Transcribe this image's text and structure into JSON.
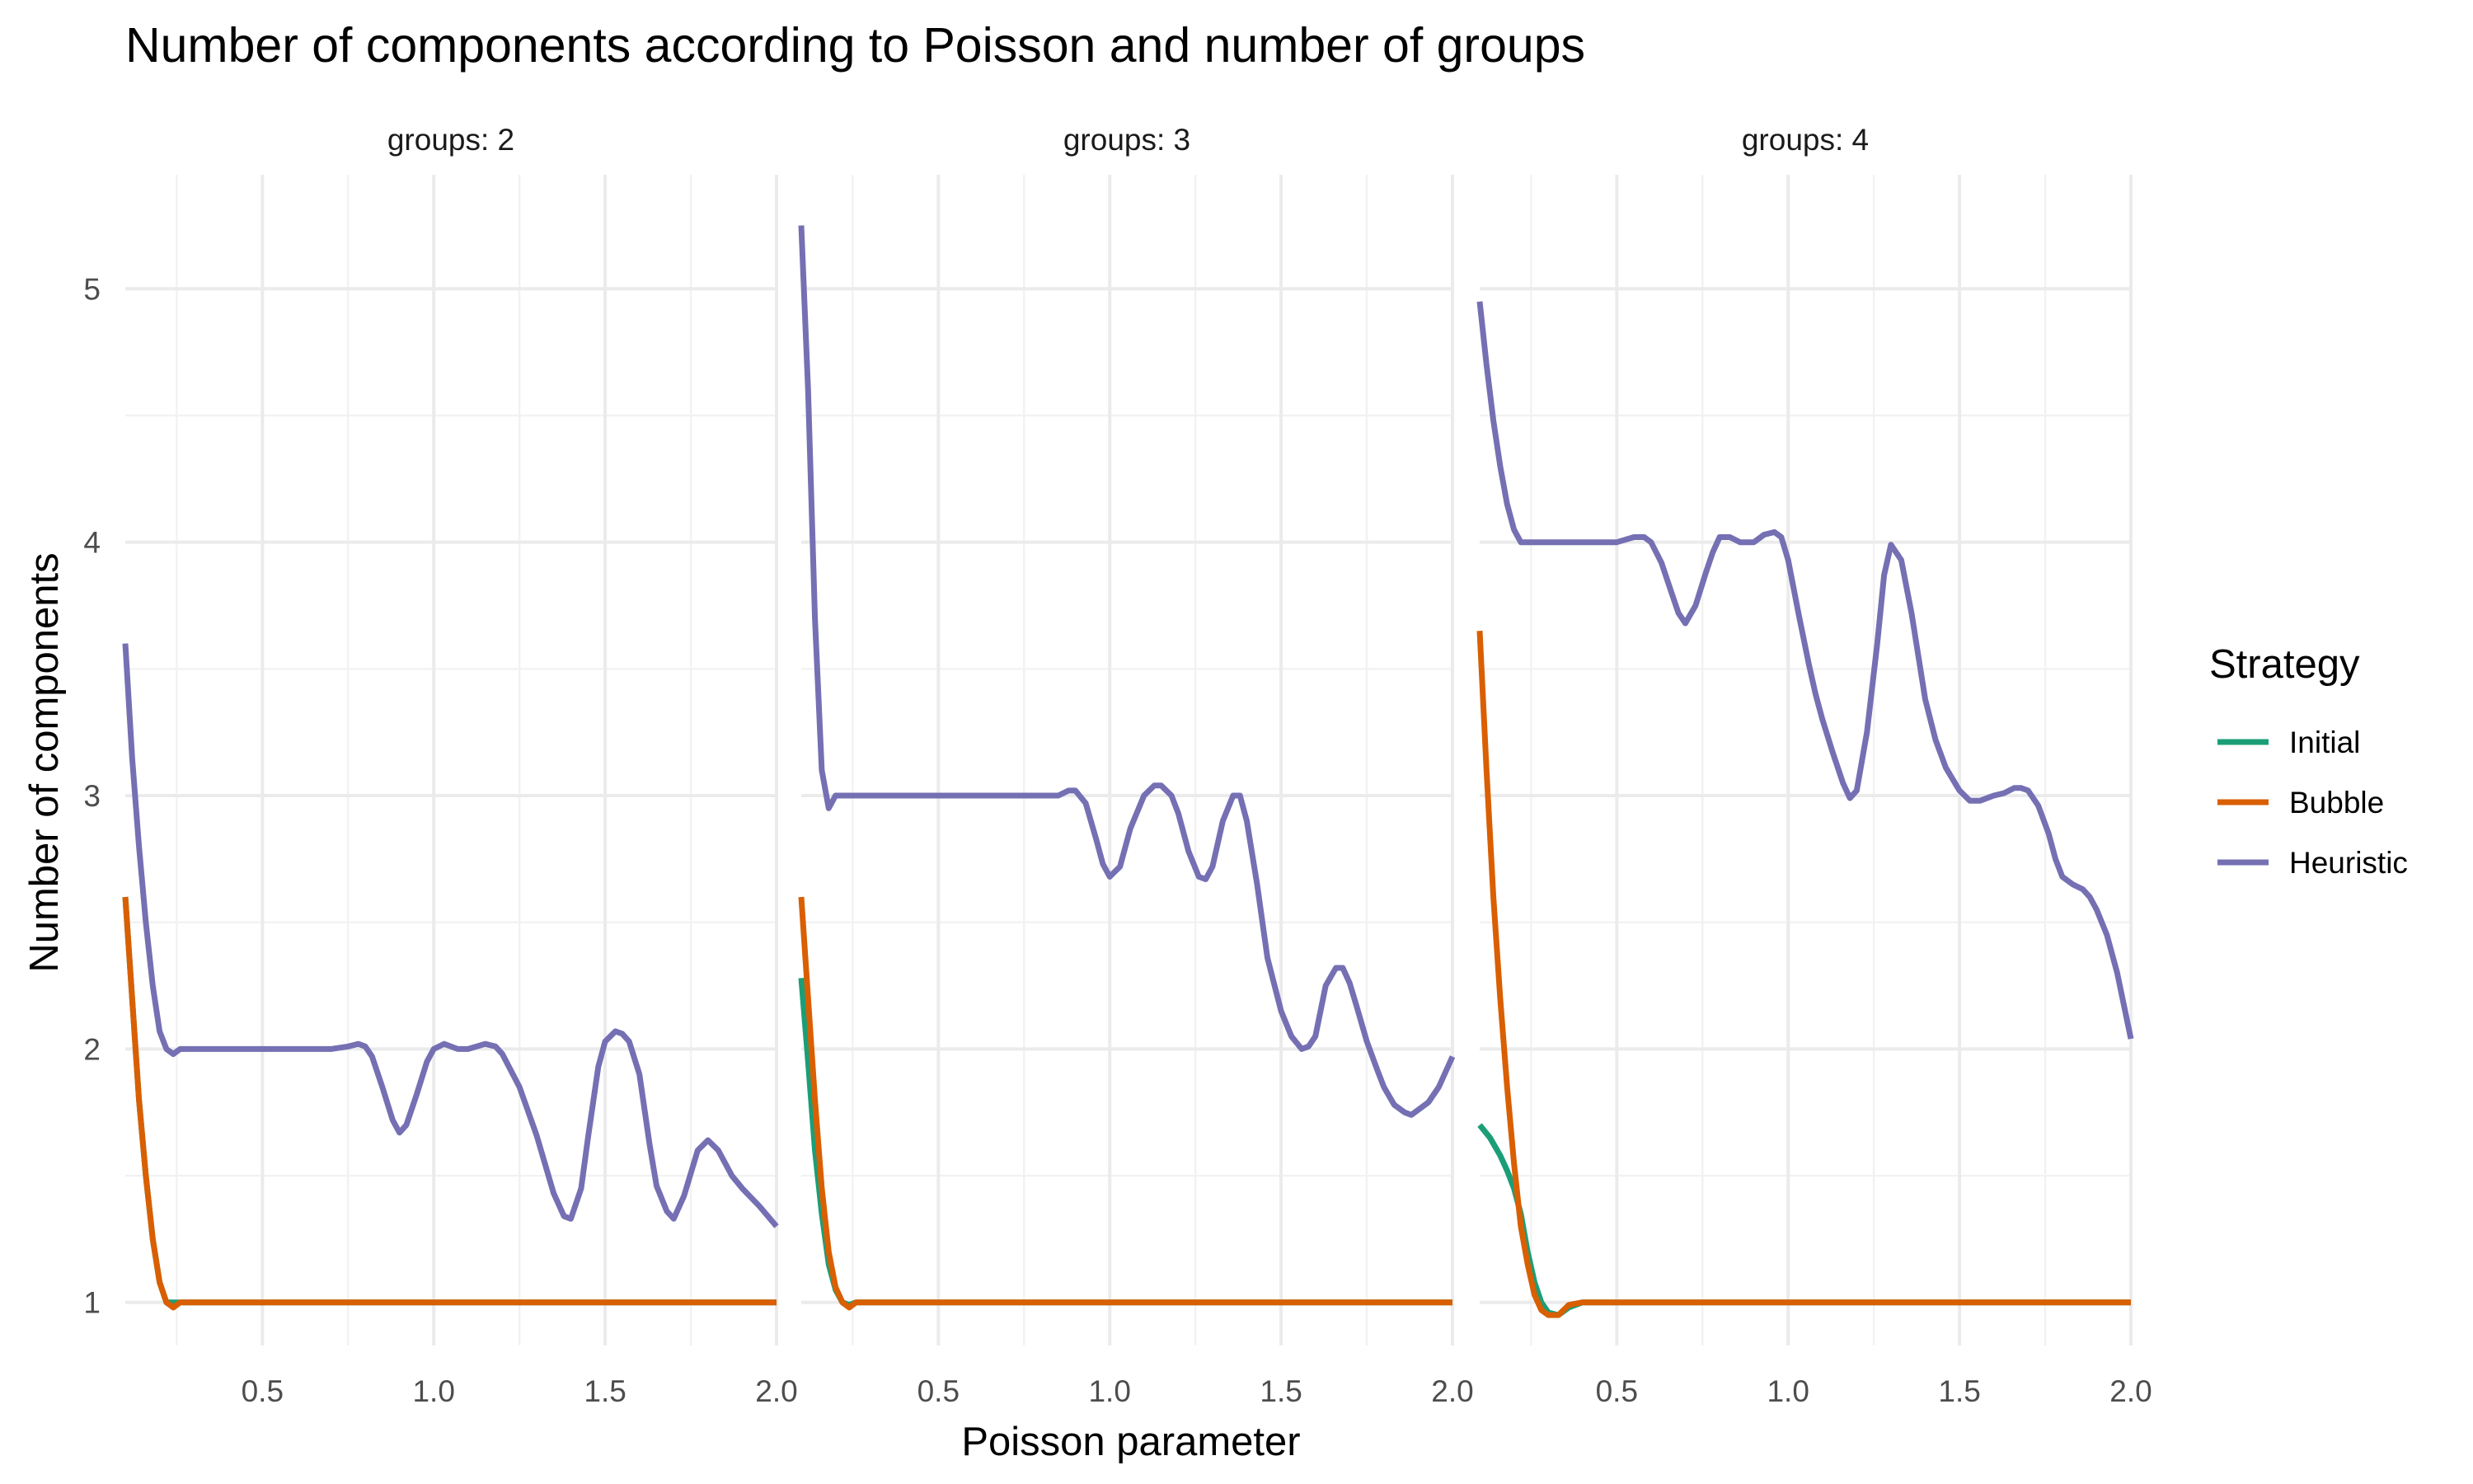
{
  "chart_data": {
    "type": "line",
    "title": "Number of components according to Poisson and number of groups",
    "xlabel": "Poisson parameter",
    "ylabel": "Number of components",
    "xlim": [
      0.1,
      2.0
    ],
    "ylim": [
      0.83,
      5.45
    ],
    "x_ticks": [
      0.5,
      1.0,
      1.5,
      2.0
    ],
    "x_tick_labels": [
      "0.5",
      "1.0",
      "1.5",
      "2.0"
    ],
    "x_minor_ticks": [
      0.25,
      0.75,
      1.25,
      1.75
    ],
    "y_ticks": [
      1,
      2,
      3,
      4,
      5
    ],
    "y_tick_labels": [
      "1",
      "2",
      "3",
      "4",
      "5"
    ],
    "y_minor_ticks": [
      1.5,
      2.5,
      3.5,
      4.5
    ],
    "grid": true,
    "legend": {
      "title": "Strategy",
      "position": "right",
      "entries": [
        {
          "name": "Initial",
          "color": "#1B9E77"
        },
        {
          "name": "Bubble",
          "color": "#D95F02"
        },
        {
          "name": "Heuristic",
          "color": "#7570B3"
        }
      ]
    },
    "facets": [
      {
        "label": "groups: 2",
        "series": [
          {
            "name": "Initial",
            "color": "#1B9E77",
            "x": [
              0.1,
              0.12,
              0.14,
              0.16,
              0.18,
              0.2,
              0.22,
              0.25,
              0.3,
              0.5,
              1.0,
              1.5,
              2.0
            ],
            "y": [
              2.6,
              2.2,
              1.8,
              1.5,
              1.25,
              1.08,
              1.0,
              1.0,
              1.0,
              1.0,
              1.0,
              1.0,
              1.0
            ]
          },
          {
            "name": "Bubble",
            "color": "#D95F02",
            "x": [
              0.1,
              0.12,
              0.14,
              0.16,
              0.18,
              0.2,
              0.22,
              0.24,
              0.26,
              0.3,
              0.5,
              1.0,
              1.5,
              2.0
            ],
            "y": [
              2.6,
              2.2,
              1.8,
              1.5,
              1.25,
              1.08,
              1.0,
              0.98,
              1.0,
              1.0,
              1.0,
              1.0,
              1.0,
              1.0
            ]
          },
          {
            "name": "Heuristic",
            "color": "#7570B3",
            "x": [
              0.1,
              0.12,
              0.14,
              0.16,
              0.18,
              0.2,
              0.22,
              0.24,
              0.26,
              0.3,
              0.5,
              0.7,
              0.75,
              0.78,
              0.8,
              0.82,
              0.85,
              0.88,
              0.9,
              0.92,
              0.95,
              0.98,
              1.0,
              1.03,
              1.07,
              1.1,
              1.15,
              1.18,
              1.2,
              1.25,
              1.3,
              1.35,
              1.38,
              1.4,
              1.43,
              1.45,
              1.48,
              1.5,
              1.53,
              1.55,
              1.57,
              1.6,
              1.63,
              1.65,
              1.68,
              1.7,
              1.73,
              1.77,
              1.8,
              1.83,
              1.87,
              1.9,
              1.95,
              2.0
            ],
            "y": [
              3.6,
              3.15,
              2.8,
              2.5,
              2.25,
              2.07,
              2.0,
              1.98,
              2.0,
              2.0,
              2.0,
              2.0,
              2.01,
              2.02,
              2.01,
              1.97,
              1.85,
              1.72,
              1.67,
              1.7,
              1.82,
              1.95,
              2.0,
              2.02,
              2.0,
              2.0,
              2.02,
              2.01,
              1.98,
              1.85,
              1.66,
              1.43,
              1.34,
              1.33,
              1.45,
              1.65,
              1.93,
              2.03,
              2.07,
              2.06,
              2.03,
              1.9,
              1.62,
              1.46,
              1.36,
              1.33,
              1.42,
              1.6,
              1.64,
              1.6,
              1.5,
              1.45,
              1.38,
              1.3
            ]
          }
        ]
      },
      {
        "label": "groups: 3",
        "series": [
          {
            "name": "Initial",
            "color": "#1B9E77",
            "x": [
              0.1,
              0.12,
              0.14,
              0.16,
              0.18,
              0.2,
              0.22,
              0.24,
              0.26,
              0.3,
              0.5,
              1.0,
              1.5,
              2.0
            ],
            "y": [
              2.28,
              1.95,
              1.6,
              1.35,
              1.15,
              1.05,
              1.0,
              0.99,
              1.0,
              1.0,
              1.0,
              1.0,
              1.0,
              1.0
            ]
          },
          {
            "name": "Bubble",
            "color": "#D95F02",
            "x": [
              0.1,
              0.12,
              0.14,
              0.16,
              0.18,
              0.2,
              0.22,
              0.24,
              0.26,
              0.3,
              0.5,
              1.0,
              1.5,
              2.0
            ],
            "y": [
              2.6,
              2.2,
              1.8,
              1.45,
              1.2,
              1.06,
              1.0,
              0.98,
              1.0,
              1.0,
              1.0,
              1.0,
              1.0,
              1.0
            ]
          },
          {
            "name": "Heuristic",
            "color": "#7570B3",
            "x": [
              0.1,
              0.12,
              0.14,
              0.16,
              0.18,
              0.2,
              0.22,
              0.25,
              0.28,
              0.3,
              0.5,
              0.8,
              0.85,
              0.88,
              0.9,
              0.93,
              0.96,
              0.98,
              1.0,
              1.03,
              1.06,
              1.1,
              1.13,
              1.15,
              1.18,
              1.2,
              1.23,
              1.26,
              1.28,
              1.3,
              1.33,
              1.36,
              1.38,
              1.4,
              1.43,
              1.46,
              1.5,
              1.53,
              1.56,
              1.58,
              1.6,
              1.63,
              1.66,
              1.68,
              1.7,
              1.72,
              1.75,
              1.78,
              1.8,
              1.83,
              1.86,
              1.88,
              1.9,
              1.93,
              1.96,
              2.0
            ],
            "y": [
              5.25,
              4.6,
              3.7,
              3.1,
              2.95,
              3.0,
              3.0,
              3.0,
              3.0,
              3.0,
              3.0,
              3.0,
              3.0,
              3.02,
              3.02,
              2.97,
              2.83,
              2.73,
              2.68,
              2.72,
              2.87,
              3.0,
              3.04,
              3.04,
              3.0,
              2.93,
              2.78,
              2.68,
              2.67,
              2.72,
              2.9,
              3.0,
              3.0,
              2.9,
              2.65,
              2.36,
              2.15,
              2.05,
              2.0,
              2.01,
              2.05,
              2.25,
              2.32,
              2.32,
              2.26,
              2.17,
              2.03,
              1.92,
              1.85,
              1.78,
              1.75,
              1.74,
              1.76,
              1.79,
              1.85,
              1.97
            ]
          }
        ]
      },
      {
        "label": "groups: 4",
        "series": [
          {
            "name": "Initial",
            "color": "#1B9E77",
            "x": [
              0.1,
              0.13,
              0.16,
              0.18,
              0.2,
              0.22,
              0.24,
              0.26,
              0.28,
              0.3,
              0.33,
              0.36,
              0.4,
              0.5,
              1.0,
              1.5,
              2.0
            ],
            "y": [
              1.7,
              1.65,
              1.58,
              1.52,
              1.45,
              1.35,
              1.2,
              1.08,
              1.0,
              0.96,
              0.95,
              0.98,
              1.0,
              1.0,
              1.0,
              1.0,
              1.0
            ]
          },
          {
            "name": "Bubble",
            "color": "#D95F02",
            "x": [
              0.1,
              0.12,
              0.14,
              0.16,
              0.18,
              0.2,
              0.22,
              0.24,
              0.26,
              0.28,
              0.3,
              0.33,
              0.36,
              0.4,
              0.5,
              1.0,
              1.5,
              2.0
            ],
            "y": [
              3.65,
              3.1,
              2.6,
              2.2,
              1.85,
              1.55,
              1.3,
              1.15,
              1.03,
              0.97,
              0.95,
              0.95,
              0.99,
              1.0,
              1.0,
              1.0,
              1.0,
              1.0
            ]
          },
          {
            "name": "Heuristic",
            "color": "#7570B3",
            "x": [
              0.1,
              0.12,
              0.14,
              0.16,
              0.18,
              0.2,
              0.22,
              0.24,
              0.27,
              0.3,
              0.5,
              0.55,
              0.58,
              0.6,
              0.63,
              0.66,
              0.68,
              0.7,
              0.73,
              0.76,
              0.78,
              0.8,
              0.83,
              0.86,
              0.9,
              0.93,
              0.96,
              0.98,
              1.0,
              1.03,
              1.06,
              1.08,
              1.1,
              1.13,
              1.16,
              1.18,
              1.2,
              1.23,
              1.26,
              1.28,
              1.3,
              1.33,
              1.36,
              1.38,
              1.4,
              1.43,
              1.46,
              1.5,
              1.53,
              1.56,
              1.6,
              1.63,
              1.66,
              1.68,
              1.7,
              1.73,
              1.76,
              1.78,
              1.8,
              1.83,
              1.86,
              1.88,
              1.9,
              1.93,
              1.96,
              2.0
            ],
            "y": [
              4.95,
              4.7,
              4.48,
              4.3,
              4.15,
              4.05,
              4.0,
              4.0,
              4.0,
              4.0,
              4.0,
              4.02,
              4.02,
              4.0,
              3.92,
              3.8,
              3.72,
              3.68,
              3.75,
              3.88,
              3.96,
              4.02,
              4.02,
              4.0,
              4.0,
              4.03,
              4.04,
              4.02,
              3.93,
              3.72,
              3.52,
              3.4,
              3.3,
              3.17,
              3.05,
              2.99,
              3.02,
              3.25,
              3.6,
              3.87,
              3.99,
              3.93,
              3.72,
              3.55,
              3.38,
              3.22,
              3.11,
              3.02,
              2.98,
              2.98,
              3.0,
              3.01,
              3.03,
              3.03,
              3.02,
              2.96,
              2.85,
              2.75,
              2.68,
              2.65,
              2.63,
              2.6,
              2.55,
              2.45,
              2.3,
              2.04
            ]
          }
        ]
      }
    ]
  }
}
